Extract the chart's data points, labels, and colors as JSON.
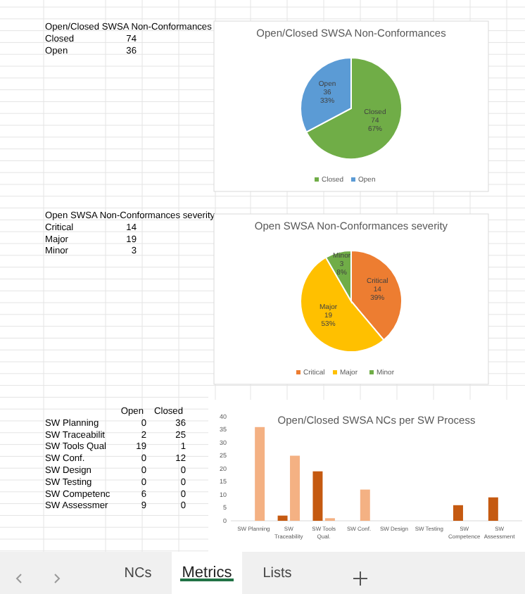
{
  "chart_data": [
    {
      "type": "other",
      "title": "Open/Closed SWSA Non-Conformances",
      "categories": [
        "Closed",
        "Open"
      ],
      "values": [
        74,
        36
      ],
      "data_labels": true
    },
    {
      "type": "pie",
      "title": "Open/Closed SWSA Non-Conformances",
      "categories": [
        "Closed",
        "Open"
      ],
      "values": [
        74,
        36
      ],
      "colors": [
        "#70ad47",
        "#5b9bd5"
      ],
      "value_labels": [
        "Closed\n74\n67%",
        "Open\n36\n33%"
      ],
      "legend": "bottom"
    },
    {
      "type": "other",
      "title": "Open SWSA Non-Conformances severity",
      "categories": [
        "Critical",
        "Major",
        "Minor"
      ],
      "values": [
        14,
        19,
        3
      ],
      "data_labels": true
    },
    {
      "type": "pie",
      "title": "Open SWSA Non-Conformances severity",
      "categories": [
        "Critical",
        "Major",
        "Minor"
      ],
      "values": [
        14,
        19,
        3
      ],
      "colors": [
        "#ed7d31",
        "#ffc000",
        "#70ad47"
      ],
      "value_labels": [
        "Critical\n14\n39%",
        "Major\n19\n53%",
        "Minor\n3\n8%"
      ],
      "legend": "bottom"
    },
    {
      "type": "other",
      "categories": [
        "SW Planning",
        "SW Traceabilit",
        "SW Tools Qual",
        "SW Conf.",
        "SW Design",
        "SW Testing",
        "SW Competenc",
        "SW Assessmer"
      ],
      "series": [
        {
          "name": "Open",
          "values": [
            0,
            2,
            19,
            0,
            0,
            0,
            6,
            9
          ]
        },
        {
          "name": "Closed",
          "values": [
            36,
            25,
            1,
            12,
            0,
            0,
            0,
            0
          ]
        }
      ],
      "data_labels": true
    },
    {
      "type": "bar",
      "title": "Open/Closed SWSA NCs per SW Process",
      "categories": [
        "SW Planning",
        "SW Traceability",
        "SW Tools Qual.",
        "SW Conf.",
        "SW Design",
        "SW Testing",
        "SW Competence",
        "SW Assessment"
      ],
      "series": [
        {
          "color": "#c55a11",
          "values": [
            0,
            2,
            19,
            0,
            0,
            0,
            6,
            9
          ]
        },
        {
          "color": "#f4b183",
          "values": [
            36,
            25,
            1,
            12,
            0,
            0,
            0,
            0
          ]
        }
      ],
      "ylim": [
        0,
        40
      ],
      "yticks": [
        0,
        5,
        10,
        15,
        20,
        25,
        30,
        35,
        40
      ],
      "legend": false
    },
    {
      "type": "other",
      "annotations": [
        "NCs",
        "Metrics",
        "Lists"
      ]
    }
  ]
}
